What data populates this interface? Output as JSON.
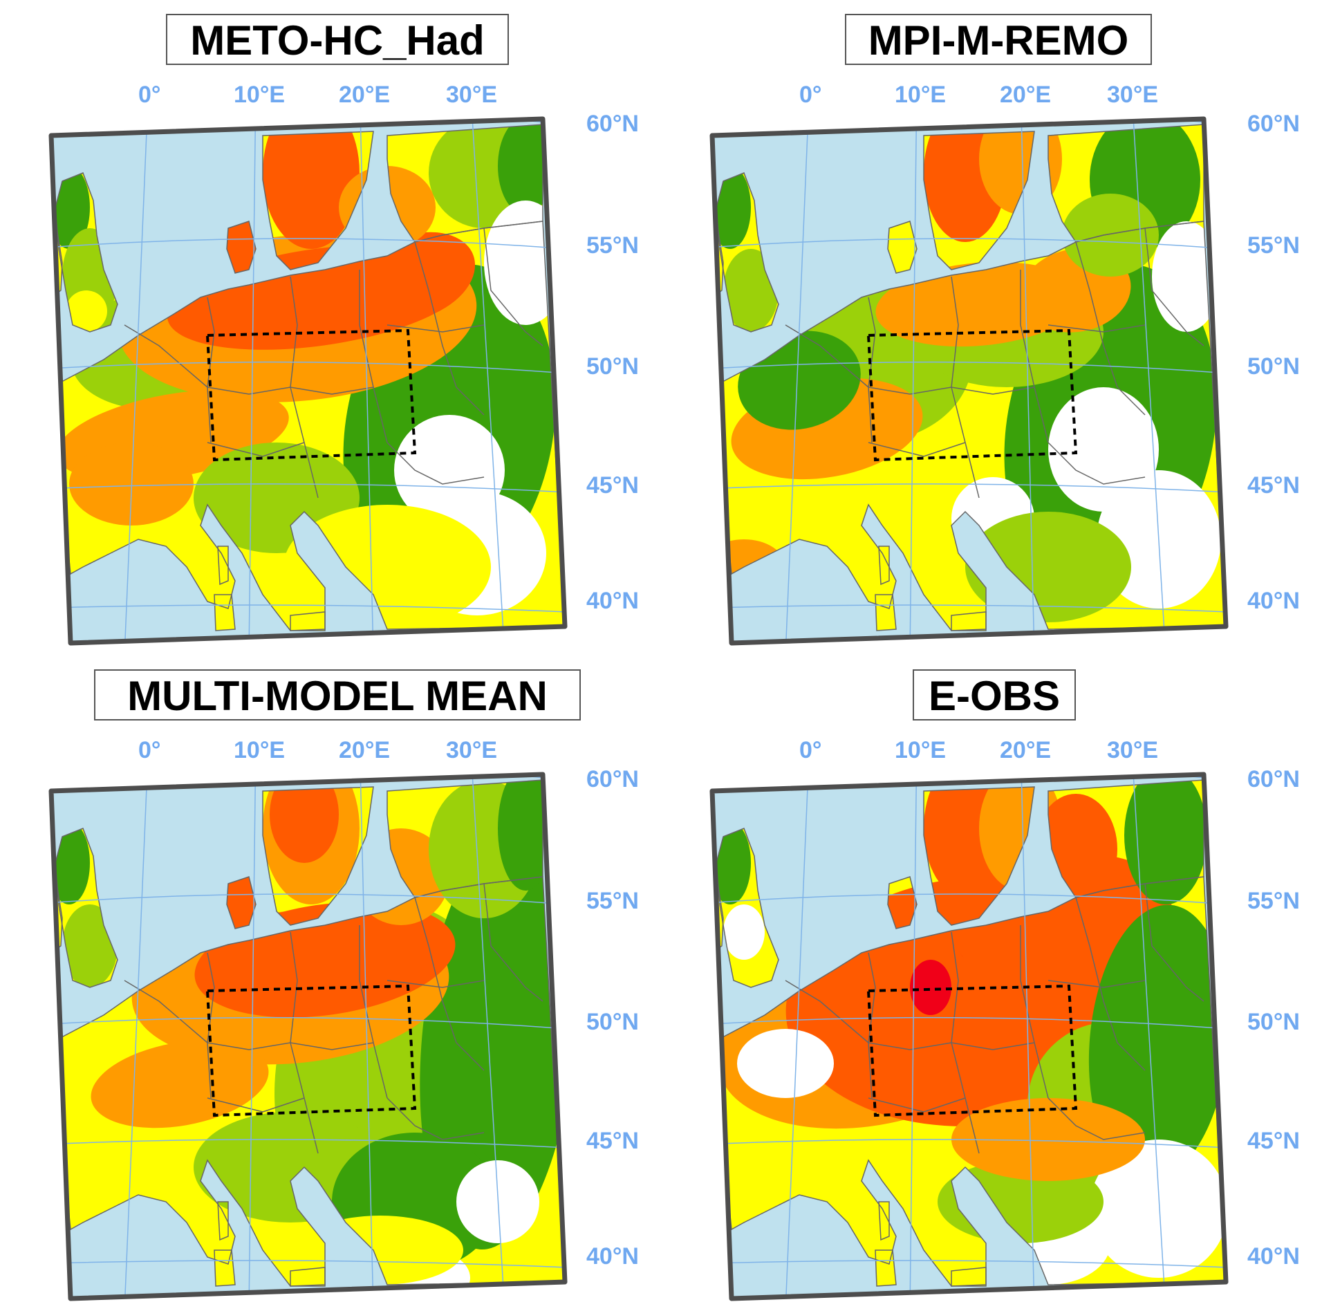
{
  "panels": [
    {
      "title": "METO-HC_Had"
    },
    {
      "title": "MPI-M-REMO"
    },
    {
      "title": "MULTI-MODEL MEAN"
    },
    {
      "title": "E-OBS"
    }
  ],
  "longitude_labels": [
    "0°",
    "10°E",
    "20°E",
    "30°E"
  ],
  "latitude_labels": [
    "60°N",
    "55°N",
    "50°N",
    "45°N",
    "40°N"
  ],
  "colors": {
    "sea": "#bfe1ee",
    "graticule": "#7fb3e8",
    "frame": "#4d4d4d",
    "border": "#666666",
    "white": "#ffffff",
    "dark_green": "#3aa10a",
    "light_green": "#9bd10a",
    "yellow": "#ffff00",
    "orange": "#ff9b00",
    "red_orange": "#ff5a00",
    "red": "#f00018",
    "axis_label": "#6fa8f0"
  }
}
